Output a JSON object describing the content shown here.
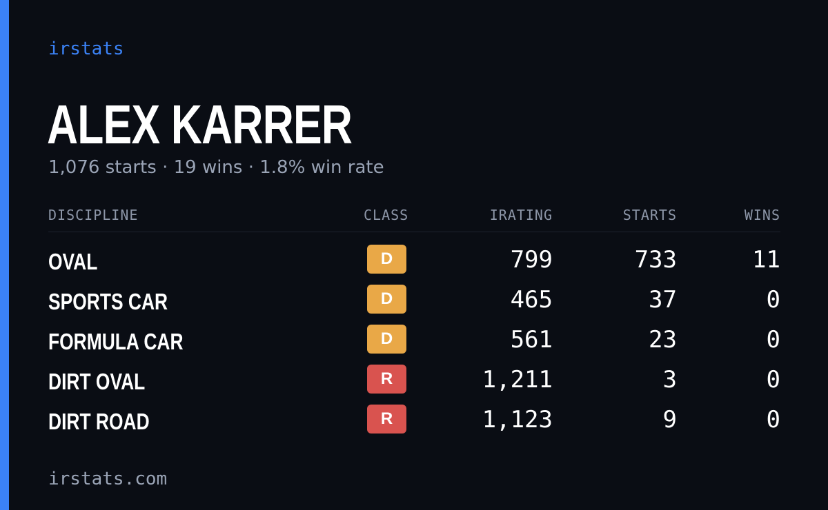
{
  "brand": "irstats",
  "driver": {
    "name": "ALEX KARRER",
    "summary": "1,076 starts · 19 wins · 1.8% win rate"
  },
  "colors": {
    "accent": "#3b82f6",
    "background": "#0a0d14",
    "class_D": "#e9a847",
    "class_R": "#d9534f"
  },
  "table": {
    "headers": {
      "discipline": "DISCIPLINE",
      "class": "CLASS",
      "irating": "IRATING",
      "starts": "STARTS",
      "wins": "WINS"
    },
    "rows": [
      {
        "discipline": "OVAL",
        "class": "D",
        "irating": "799",
        "starts": "733",
        "wins": "11"
      },
      {
        "discipline": "SPORTS CAR",
        "class": "D",
        "irating": "465",
        "starts": "37",
        "wins": "0"
      },
      {
        "discipline": "FORMULA CAR",
        "class": "D",
        "irating": "561",
        "starts": "23",
        "wins": "0"
      },
      {
        "discipline": "DIRT OVAL",
        "class": "R",
        "irating": "1,211",
        "starts": "3",
        "wins": "0"
      },
      {
        "discipline": "DIRT ROAD",
        "class": "R",
        "irating": "1,123",
        "starts": "9",
        "wins": "0"
      }
    ]
  },
  "footer": "irstats.com"
}
